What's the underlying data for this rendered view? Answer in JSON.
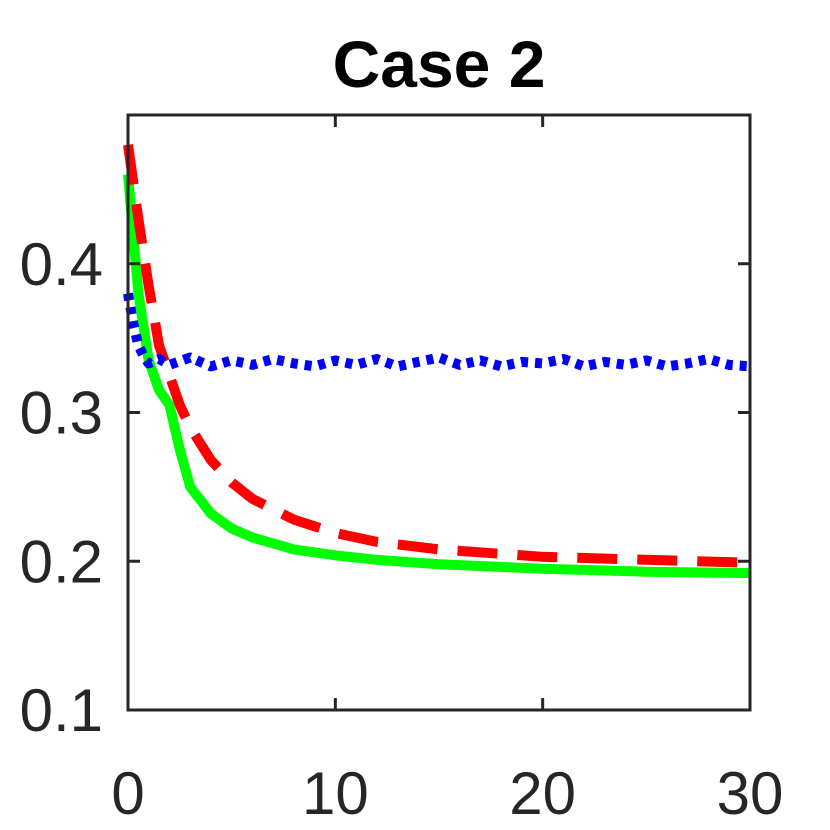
{
  "chart_data": {
    "type": "line",
    "title": "Case 2",
    "xlabel": "",
    "ylabel": "",
    "xlim": [
      0,
      30
    ],
    "ylim": [
      0.1,
      0.5
    ],
    "xticks": [
      0,
      10,
      20,
      30
    ],
    "xtick_labels": [
      "0",
      "10",
      "20",
      "30"
    ],
    "yticks": [
      0.1,
      0.2,
      0.3,
      0.4
    ],
    "ytick_labels": [
      "0.1",
      "0.2",
      "0.3",
      "0.4"
    ],
    "grid": false,
    "legend": "none",
    "series": [
      {
        "color": "#00ff00",
        "style": "solid",
        "x": [
          0,
          0.5,
          1,
          1.5,
          2,
          2.5,
          3,
          4,
          5,
          6,
          8,
          10,
          12,
          15,
          20,
          25,
          30
        ],
        "y": [
          0.46,
          0.38,
          0.335,
          0.315,
          0.305,
          0.275,
          0.25,
          0.232,
          0.222,
          0.216,
          0.208,
          0.204,
          0.201,
          0.198,
          0.195,
          0.193,
          0.192
        ]
      },
      {
        "color": "#ff0000",
        "style": "dashed",
        "x": [
          0,
          0.5,
          1,
          1.5,
          2,
          2.5,
          3,
          4,
          5,
          6,
          8,
          10,
          12,
          15,
          20,
          25,
          30
        ],
        "y": [
          0.48,
          0.43,
          0.385,
          0.345,
          0.325,
          0.305,
          0.29,
          0.268,
          0.253,
          0.242,
          0.228,
          0.219,
          0.213,
          0.208,
          0.203,
          0.201,
          0.199
        ]
      },
      {
        "color": "#0000ff",
        "style": "dotted",
        "x": [
          0,
          0.25,
          0.5,
          0.75,
          1,
          1.5,
          2,
          3,
          4,
          5,
          6,
          7,
          8,
          9,
          10,
          11,
          12,
          13,
          14,
          15,
          16,
          17,
          18,
          19,
          20,
          21,
          22,
          23,
          24,
          25,
          26,
          27,
          28,
          29,
          30
        ],
        "y": [
          0.38,
          0.36,
          0.345,
          0.338,
          0.333,
          0.336,
          0.332,
          0.337,
          0.331,
          0.335,
          0.332,
          0.336,
          0.333,
          0.331,
          0.335,
          0.332,
          0.336,
          0.331,
          0.334,
          0.337,
          0.332,
          0.335,
          0.331,
          0.334,
          0.333,
          0.336,
          0.331,
          0.334,
          0.332,
          0.335,
          0.331,
          0.333,
          0.336,
          0.332,
          0.331
        ]
      }
    ]
  }
}
